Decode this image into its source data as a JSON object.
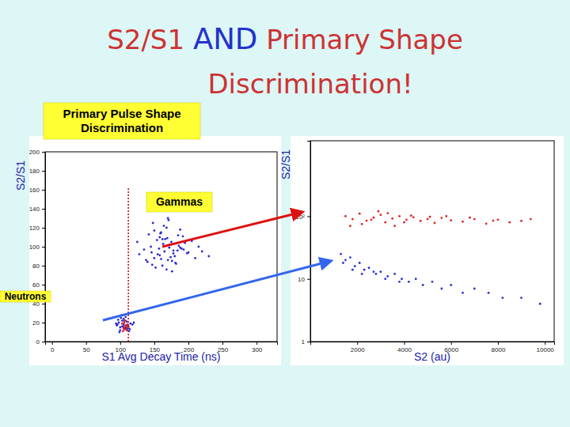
{
  "title_lines": [
    [
      {
        "text": "S2/S1 ",
        "color": "#cc3333"
      },
      {
        "text": "AND",
        "color": "#2233cc"
      },
      {
        "text": " Primary Shape",
        "color": "#cc3333"
      }
    ],
    [
      {
        "text": "Discrimination!",
        "color": "#cc3333"
      }
    ]
  ],
  "labels": [
    {
      "lines": [
        "Primary Pulse Shape",
        "Discrimination"
      ]
    },
    {
      "lines": [
        "Gammas"
      ]
    },
    {
      "lines": [
        "Neutrons"
      ]
    }
  ],
  "chart_data": [
    {
      "type": "scatter",
      "x_label": "S1 Avg Decay Time (ns)",
      "y_label": "S2/S1",
      "xlim": [
        -10,
        330
      ],
      "xticks": [
        0,
        50,
        100,
        150,
        200,
        250,
        300
      ],
      "ylim": [
        0,
        200
      ],
      "yticks": [
        0,
        20,
        40,
        60,
        80,
        100,
        120,
        140,
        160,
        180,
        200
      ],
      "cut_line": {
        "x": 112,
        "y_from": 0,
        "y_to": 163,
        "color": "#cc0000"
      },
      "series": [
        {
          "color": "#2a2ad0",
          "x": [
            165,
            150,
            172,
            180,
            158,
            140,
            190,
            168,
            155,
            175,
            162,
            185,
            145,
            200,
            170,
            160,
            178,
            152,
            195,
            166,
            148,
            182,
            172,
            158,
            210,
            135,
            188,
            163,
            176,
            154,
            220,
            142,
            198,
            170,
            186,
            160,
            128,
            205,
            168,
            150,
            174,
            192,
            157,
            181,
            164,
            146,
            215,
            138,
            169,
            184,
            230,
            125,
            176,
            159,
            193,
            171,
            147,
            188,
            162,
            178
          ],
          "values": [
            95,
            88,
            102,
            90,
            110,
            84,
            98,
            120,
            92,
            105,
            80,
            112,
            100,
            94,
            86,
            115,
            96,
            78,
            104,
            108,
            125,
            82,
            99,
            91,
            88,
            97,
            118,
            103,
            85,
            107,
            95,
            113,
            93,
            130,
            101,
            87,
            92,
            106,
            76,
            117,
            89,
            111,
            98,
            83,
            122,
            94,
            100,
            86,
            109,
            96,
            90,
            105,
            74,
            114,
            97,
            128,
            81,
            99,
            108,
            93
          ]
        },
        {
          "color": "#2a2ad0",
          "x": [
            100,
            105,
            110,
            98,
            112,
            103,
            108,
            95,
            115,
            101,
            106,
            110,
            99,
            104,
            118,
            102,
            107,
            97,
            113,
            109,
            94,
            111,
            105,
            100,
            120,
            103,
            108,
            96,
            114,
            106
          ],
          "values": [
            15,
            18,
            12,
            20,
            16,
            22,
            14,
            17,
            19,
            25,
            13,
            21,
            10,
            16,
            18,
            28,
            15,
            23,
            11,
            17,
            19,
            14,
            24,
            12,
            20,
            16,
            26,
            18,
            13,
            22
          ]
        },
        {
          "color": "#dd2222",
          "x": [
            105,
            108,
            110,
            103,
            112,
            107,
            106,
            109,
            104,
            111,
            108,
            106
          ],
          "values": [
            14,
            17,
            12,
            19,
            15,
            13,
            20,
            16,
            11,
            18,
            22,
            15
          ]
        }
      ]
    },
    {
      "type": "scatter",
      "x_label": "S2 (au)",
      "y_label": "S2/S1",
      "log": "y",
      "xlim": [
        0,
        10400
      ],
      "xticks": [
        2000,
        4000,
        6000,
        8000,
        10000
      ],
      "ylim": [
        1,
        1600
      ],
      "yticks": [
        1,
        10,
        {
          "value": 100,
          "label": "10²"
        }
      ],
      "series": [
        {
          "color": "#dd2222",
          "x": [
            1500,
            1800,
            2100,
            2400,
            2700,
            3000,
            3200,
            3500,
            3800,
            4100,
            4400,
            4700,
            5000,
            5300,
            5600,
            6000,
            6500,
            7000,
            7500,
            8000,
            8500,
            9000,
            2200,
            2900,
            3600,
            4300,
            5100,
            2600,
            3300,
            4000,
            1700,
            6800,
            7800,
            9400,
            5800
          ],
          "values": [
            100,
            90,
            110,
            85,
            95,
            105,
            80,
            92,
            100,
            88,
            96,
            84,
            90,
            78,
            94,
            86,
            82,
            90,
            76,
            88,
            80,
            84,
            75,
            120,
            70,
            102,
            98,
            88,
            112,
            80,
            70,
            95,
            85,
            90,
            100
          ]
        },
        {
          "color": "#2233cc",
          "x": [
            1300,
            1500,
            1700,
            1900,
            2100,
            2300,
            2500,
            2800,
            3000,
            3300,
            3600,
            3900,
            4200,
            4500,
            4800,
            5200,
            5600,
            6000,
            6500,
            7000,
            7600,
            8200,
            9000,
            9800,
            1400,
            1800,
            2200,
            2700,
            3200,
            3800
          ],
          "values": [
            25,
            20,
            22,
            16,
            18,
            14,
            15,
            12,
            13,
            11,
            12,
            10,
            9,
            10,
            8,
            9,
            7,
            8,
            6,
            7,
            6,
            5,
            5,
            4,
            18,
            14,
            12,
            13,
            10,
            9
          ]
        }
      ]
    }
  ]
}
